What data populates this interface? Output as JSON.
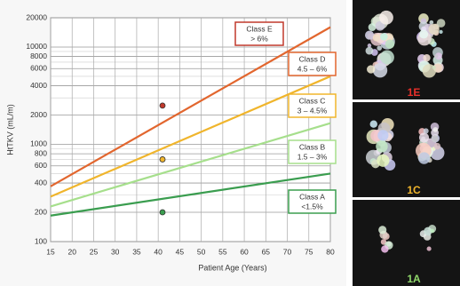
{
  "chart_data": {
    "type": "line",
    "xlabel": "Patient Age (Years)",
    "ylabel": "HtTKV (mL/m)",
    "xlim": [
      15,
      80
    ],
    "xticks": [
      15,
      20,
      25,
      30,
      35,
      40,
      45,
      50,
      55,
      60,
      65,
      70,
      75,
      80
    ],
    "ylim": [
      100,
      20000
    ],
    "log_y": true,
    "yticks": [
      100,
      200,
      400,
      600,
      800,
      1000,
      2000,
      4000,
      6000,
      8000,
      10000,
      20000
    ],
    "minor_grid": [
      300,
      500,
      700,
      900,
      3000,
      5000,
      7000,
      9000
    ],
    "grid": true,
    "series": [
      {
        "name": "Class A",
        "range": "<1.5%",
        "color": "#3a9d4f",
        "x": [
          15,
          80
        ],
        "values": [
          185,
          500
        ]
      },
      {
        "name": "Class B",
        "range": "1.5 – 3%",
        "color": "#a6df8c",
        "x": [
          15,
          80
        ],
        "values": [
          230,
          1650
        ]
      },
      {
        "name": "Class C",
        "range": "3 – 4.5%",
        "color": "#f0b52c",
        "x": [
          15,
          80
        ],
        "values": [
          290,
          5000
        ]
      },
      {
        "name": "Class D",
        "range": "4.5 – 6%",
        "color": "#e2662e",
        "x": [
          15,
          80
        ],
        "values": [
          370,
          16000
        ]
      }
    ],
    "class_e": {
      "name": "Class E",
      "range": "> 6%",
      "color": "#c0392b"
    },
    "points": {
      "x": [
        41,
        41,
        41
      ],
      "values": [
        2500,
        700,
        200
      ],
      "colors": [
        "#c0392b",
        "#f0b52c",
        "#3a9d4f"
      ]
    },
    "images": [
      {
        "label": "1E",
        "color": "#e8302a"
      },
      {
        "label": "1C",
        "color": "#f0b52c"
      },
      {
        "label": "1A",
        "color": "#8fd66a"
      }
    ]
  }
}
